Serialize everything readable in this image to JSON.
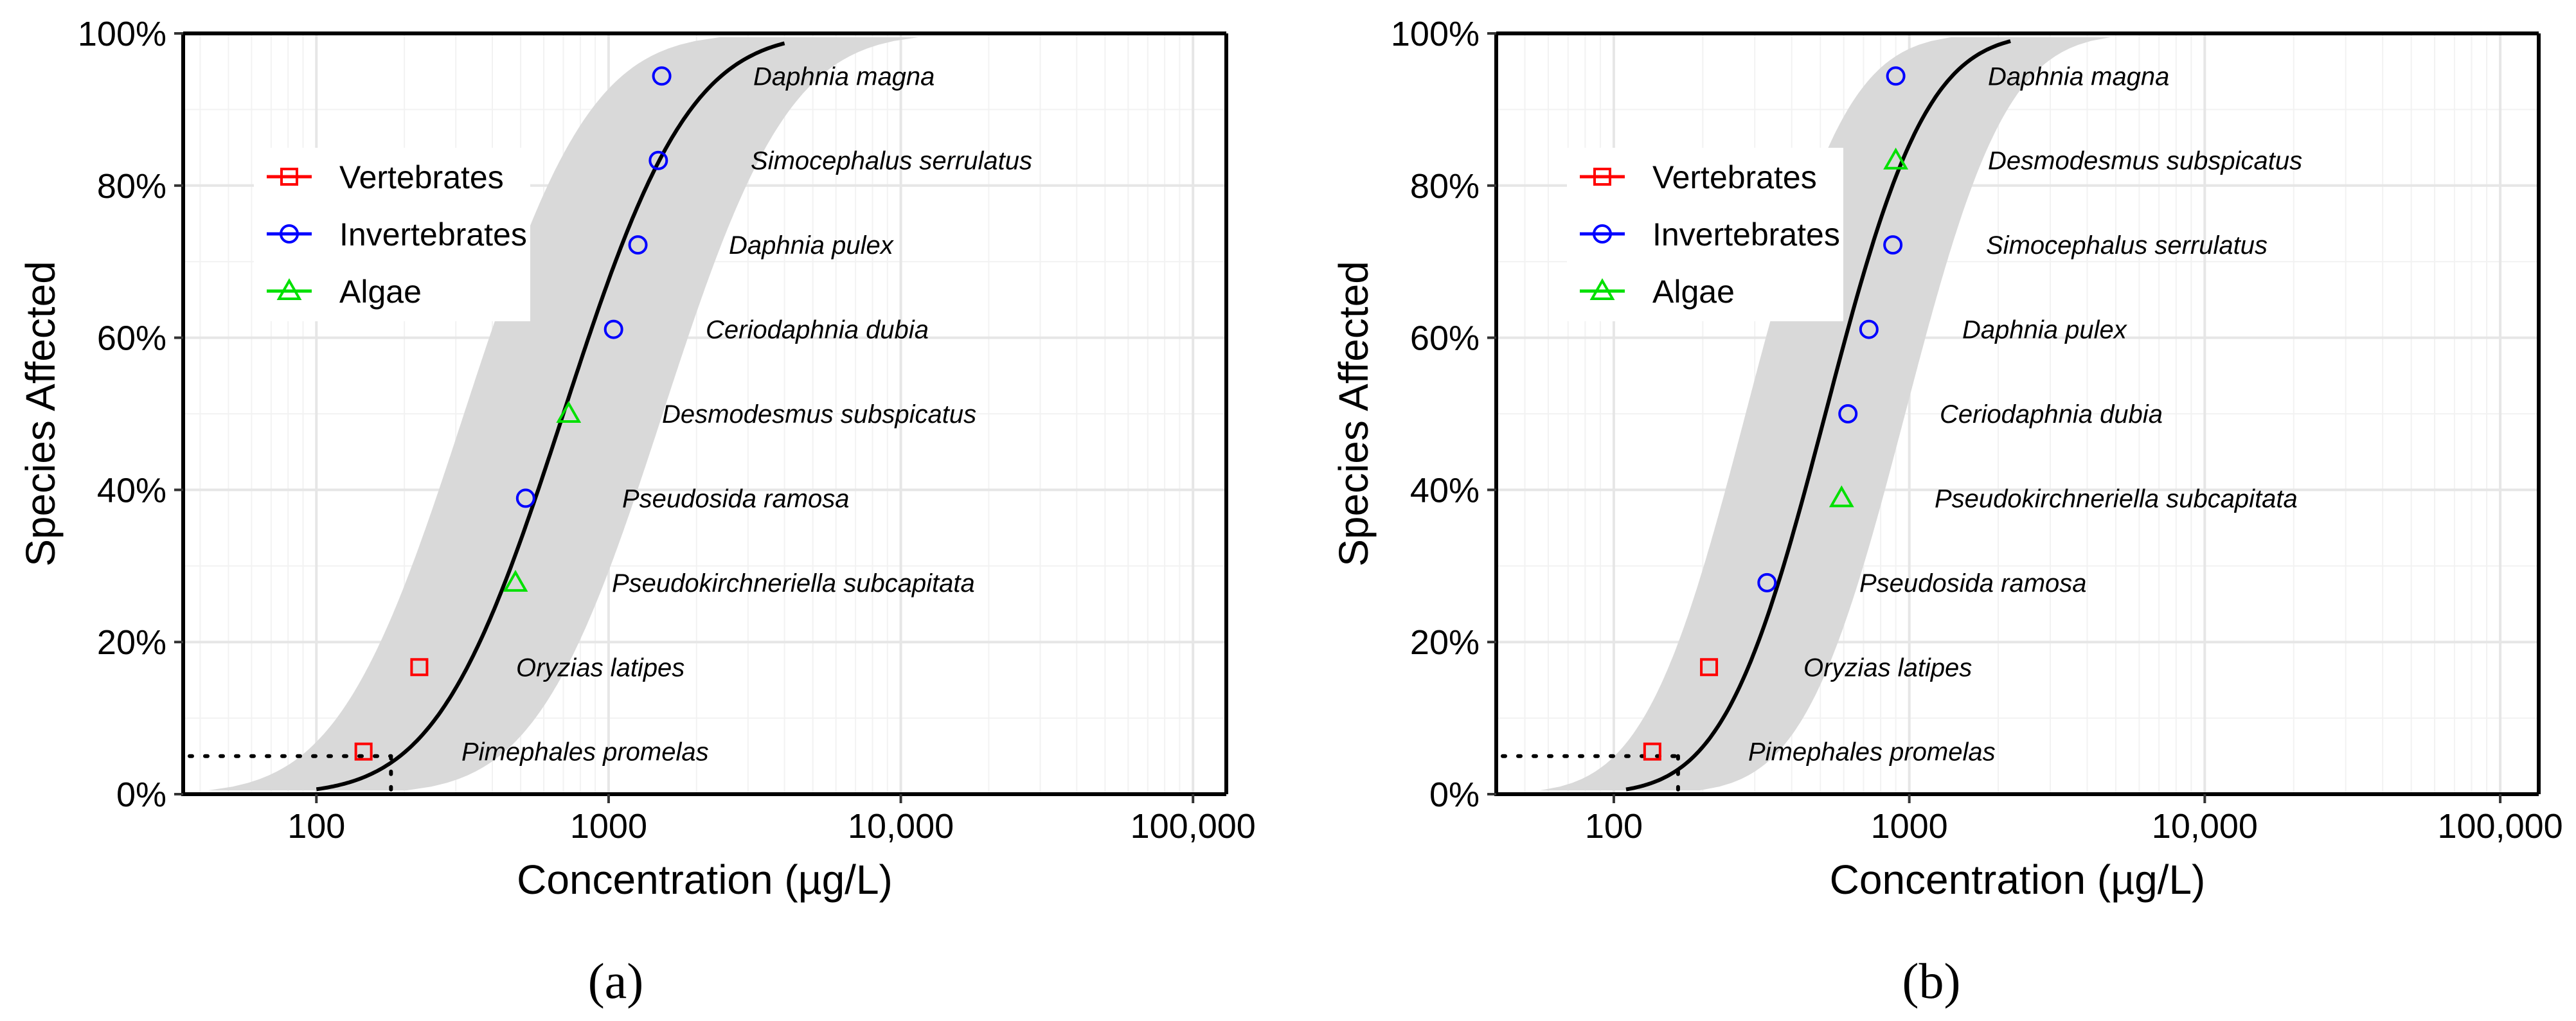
{
  "chart_data": [
    {
      "type": "scatter",
      "panel_label": "(a)",
      "xlabel": "Concentration (µg/L)",
      "ylabel": "Species Affected",
      "x_scale": "log",
      "xlim": [
        35,
        130000
      ],
      "ylim": [
        0,
        100
      ],
      "x_ticks": [
        100,
        1000,
        10000,
        100000
      ],
      "x_tick_labels": [
        "100",
        "1000",
        "10,000",
        "100,000"
      ],
      "y_ticks": [
        0,
        20,
        40,
        60,
        80,
        100
      ],
      "y_tick_labels": [
        "0%",
        "20%",
        "40%",
        "60%",
        "80%",
        "100%"
      ],
      "grid": true,
      "legend_position": "top-left",
      "legend": [
        {
          "name": "Vertebrates",
          "marker": "square",
          "color": "#ff0000"
        },
        {
          "name": "Invertebrates",
          "marker": "circle",
          "color": "#0000ff"
        },
        {
          "name": "Algae",
          "marker": "triangle",
          "color": "#00e000"
        }
      ],
      "points": [
        {
          "species": "Pimephales promelas",
          "group": "Vertebrates",
          "x": 145,
          "y": 5.6
        },
        {
          "species": "Oryzias latipes",
          "group": "Vertebrates",
          "x": 225,
          "y": 16.7
        },
        {
          "species": "Pseudokirchneriella subcapitata",
          "group": "Algae",
          "x": 480,
          "y": 27.8
        },
        {
          "species": "Pseudosida ramosa",
          "group": "Invertebrates",
          "x": 520,
          "y": 38.9
        },
        {
          "species": "Desmodesmus subspicatus",
          "group": "Algae",
          "x": 730,
          "y": 50.0
        },
        {
          "species": "Ceriodaphnia dubia",
          "group": "Invertebrates",
          "x": 1040,
          "y": 61.1
        },
        {
          "species": "Daphnia pulex",
          "group": "Invertebrates",
          "x": 1260,
          "y": 72.2
        },
        {
          "species": "Simocephalus serrulatus",
          "group": "Invertebrates",
          "x": 1480,
          "y": 83.3
        },
        {
          "species": "Daphnia magna",
          "group": "Invertebrates",
          "x": 1520,
          "y": 94.4
        }
      ],
      "fit": {
        "model": "log-normal",
        "median": 700,
        "sigma_log10": 0.34,
        "x_range": [
          100,
          4000
        ]
      },
      "confidence_band_shift_log10": 0.34,
      "hc5": {
        "x": 180,
        "y": 5
      }
    },
    {
      "type": "scatter",
      "panel_label": "(b)",
      "xlabel": "Concentration (µg/L)",
      "ylabel": "Species Affected",
      "x_scale": "log",
      "xlim": [
        40,
        135000
      ],
      "ylim": [
        0,
        100
      ],
      "x_ticks": [
        100,
        1000,
        10000,
        100000
      ],
      "x_tick_labels": [
        "100",
        "1000",
        "10,000",
        "100,000"
      ],
      "y_ticks": [
        0,
        20,
        40,
        60,
        80,
        100
      ],
      "y_tick_labels": [
        "0%",
        "20%",
        "40%",
        "60%",
        "80%",
        "100%"
      ],
      "grid": true,
      "legend_position": "top-left",
      "legend": [
        {
          "name": "Vertebrates",
          "marker": "square",
          "color": "#ff0000"
        },
        {
          "name": "Invertebrates",
          "marker": "circle",
          "color": "#0000ff"
        },
        {
          "name": "Algae",
          "marker": "triangle",
          "color": "#00e000"
        }
      ],
      "points": [
        {
          "species": "Pimephales promelas",
          "group": "Vertebrates",
          "x": 135,
          "y": 5.6
        },
        {
          "species": "Oryzias latipes",
          "group": "Vertebrates",
          "x": 210,
          "y": 16.7
        },
        {
          "species": "Pseudosida ramosa",
          "group": "Invertebrates",
          "x": 330,
          "y": 27.8
        },
        {
          "species": "Pseudokirchneriella subcapitata",
          "group": "Algae",
          "x": 590,
          "y": 38.9
        },
        {
          "species": "Ceriodaphnia dubia",
          "group": "Invertebrates",
          "x": 620,
          "y": 50.0
        },
        {
          "species": "Daphnia pulex",
          "group": "Invertebrates",
          "x": 730,
          "y": 61.1
        },
        {
          "species": "Simocephalus serrulatus",
          "group": "Invertebrates",
          "x": 880,
          "y": 72.2
        },
        {
          "species": "Desmodesmus subspicatus",
          "group": "Algae",
          "x": 900,
          "y": 83.3
        },
        {
          "species": "Daphnia magna",
          "group": "Invertebrates",
          "x": 900,
          "y": 94.4
        }
      ],
      "fit": {
        "model": "log-normal",
        "median": 520,
        "sigma_log10": 0.27,
        "x_range": [
          110,
          2200
        ]
      },
      "confidence_band_shift_log10": 0.27,
      "hc5": {
        "x": 165,
        "y": 5
      }
    }
  ]
}
